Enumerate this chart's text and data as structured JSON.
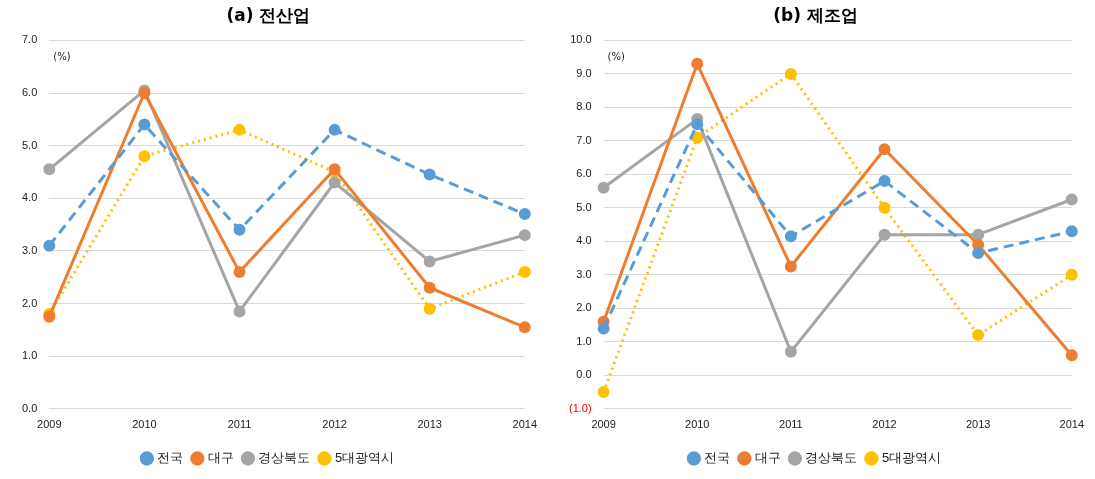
{
  "chart_data": [
    {
      "type": "line",
      "title": "(a) 전산업",
      "categories": [
        "2009",
        "2010",
        "2011",
        "2012",
        "2013",
        "2014"
      ],
      "series": [
        {
          "name": "전국",
          "color": "#5b9bd5",
          "line_style": "dashed",
          "values": [
            3.1,
            5.4,
            3.4,
            5.3,
            4.45,
            3.7
          ]
        },
        {
          "name": "대구",
          "color": "#ed7d31",
          "line_style": "solid",
          "values": [
            1.75,
            6.0,
            2.6,
            4.55,
            2.3,
            1.55
          ]
        },
        {
          "name": "경상북도",
          "color": "#a5a5a5",
          "line_style": "solid",
          "values": [
            4.55,
            6.05,
            1.85,
            4.3,
            2.8,
            3.3
          ]
        },
        {
          "name": "5대광역시",
          "color": "#ffc000",
          "line_style": "dotted",
          "values": [
            1.8,
            4.8,
            5.3,
            4.5,
            1.9,
            2.6
          ]
        }
      ],
      "ylim": [
        0,
        7
      ],
      "yticks": [
        {
          "value": 0,
          "label": "0.0"
        },
        {
          "value": 1,
          "label": "1.0"
        },
        {
          "value": 2,
          "label": "2.0"
        },
        {
          "value": 3,
          "label": "3.0"
        },
        {
          "value": 4,
          "label": "4.0"
        },
        {
          "value": 5,
          "label": "5.0"
        },
        {
          "value": 6,
          "label": "6.0"
        },
        {
          "value": 7,
          "label": "7.0"
        }
      ],
      "annotations": [
        "(%)"
      ],
      "grid": "y",
      "legend": "bottom",
      "marker": "circle"
    },
    {
      "type": "line",
      "title": "(b) 제조업",
      "categories": [
        "2009",
        "2010",
        "2011",
        "2012",
        "2013",
        "2014"
      ],
      "series": [
        {
          "name": "전국",
          "color": "#5b9bd5",
          "line_style": "dashed",
          "values": [
            1.4,
            7.5,
            4.15,
            5.8,
            3.65,
            4.3
          ]
        },
        {
          "name": "대구",
          "color": "#ed7d31",
          "line_style": "solid",
          "values": [
            1.6,
            9.3,
            3.25,
            6.75,
            3.9,
            0.6
          ]
        },
        {
          "name": "경상북도",
          "color": "#a5a5a5",
          "line_style": "solid",
          "values": [
            5.6,
            7.65,
            0.7,
            4.2,
            4.2,
            5.25
          ]
        },
        {
          "name": "5대광역시",
          "color": "#ffc000",
          "line_style": "dotted",
          "values": [
            -0.5,
            7.1,
            9.0,
            5.0,
            1.2,
            3.0
          ]
        }
      ],
      "ylim": [
        -1,
        10
      ],
      "yticks": [
        {
          "value": -1,
          "label": "(1.0)"
        },
        {
          "value": 0,
          "label": "0.0"
        },
        {
          "value": 1,
          "label": "1.0"
        },
        {
          "value": 2,
          "label": "2.0"
        },
        {
          "value": 3,
          "label": "3.0"
        },
        {
          "value": 4,
          "label": "4.0"
        },
        {
          "value": 5,
          "label": "5.0"
        },
        {
          "value": 6,
          "label": "6.0"
        },
        {
          "value": 7,
          "label": "7.0"
        },
        {
          "value": 8,
          "label": "8.0"
        },
        {
          "value": 9,
          "label": "9.0"
        },
        {
          "value": 10,
          "label": "10.0"
        }
      ],
      "annotations": [
        "(%)"
      ],
      "grid": "y",
      "legend": "bottom",
      "marker": "circle"
    }
  ]
}
